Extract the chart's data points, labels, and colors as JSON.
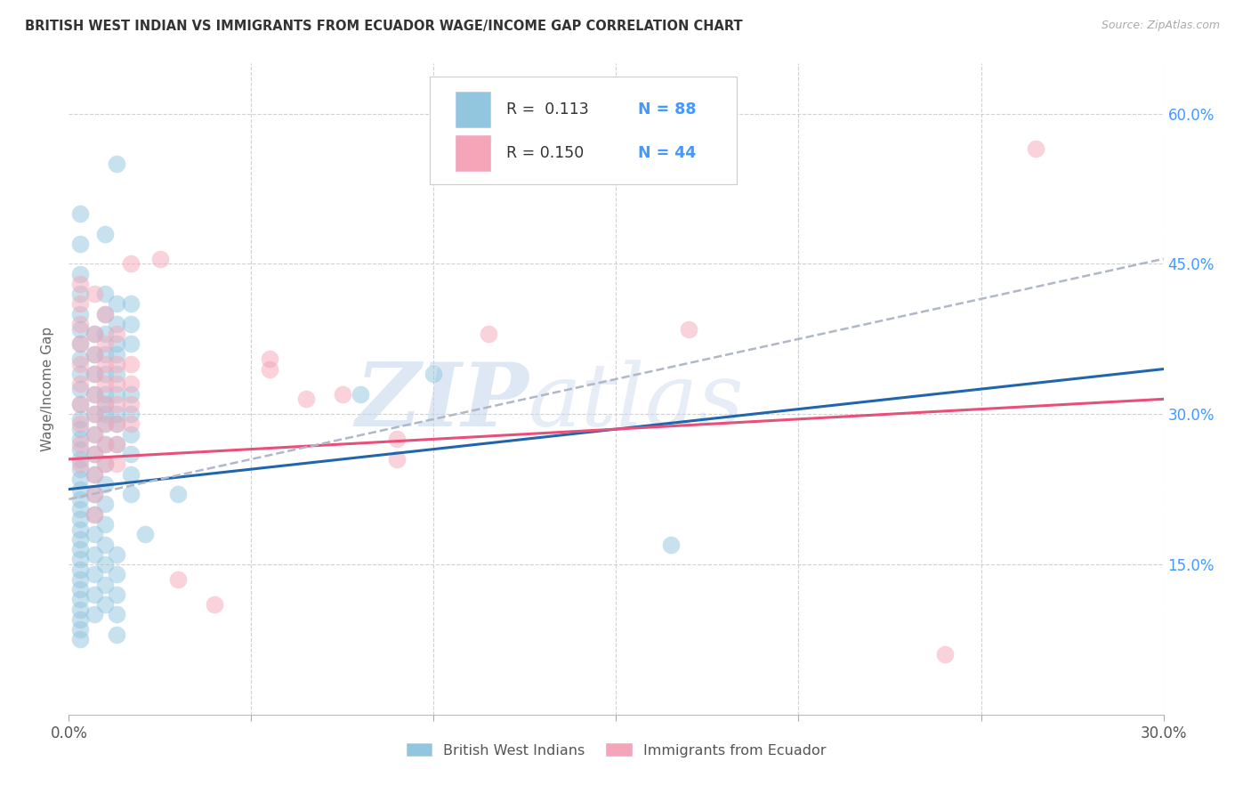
{
  "title": "BRITISH WEST INDIAN VS IMMIGRANTS FROM ECUADOR WAGE/INCOME GAP CORRELATION CHART",
  "source": "Source: ZipAtlas.com",
  "ylabel": "Wage/Income Gap",
  "x_min": 0.0,
  "x_max": 0.3,
  "y_min": 0.0,
  "y_max": 0.65,
  "color_blue": "#92c5de",
  "color_pink": "#f4a6b8",
  "color_blue_line": "#2166ac",
  "color_pink_line": "#e8507a",
  "color_dashed_line": "#b0b8c8",
  "watermark_text": "ZIP",
  "watermark_text2": "atlas",
  "blue_points": [
    [
      0.003,
      0.5
    ],
    [
      0.003,
      0.47
    ],
    [
      0.003,
      0.44
    ],
    [
      0.003,
      0.42
    ],
    [
      0.003,
      0.4
    ],
    [
      0.003,
      0.385
    ],
    [
      0.003,
      0.37
    ],
    [
      0.003,
      0.355
    ],
    [
      0.003,
      0.34
    ],
    [
      0.003,
      0.325
    ],
    [
      0.003,
      0.31
    ],
    [
      0.003,
      0.295
    ],
    [
      0.003,
      0.285
    ],
    [
      0.003,
      0.275
    ],
    [
      0.003,
      0.265
    ],
    [
      0.003,
      0.255
    ],
    [
      0.003,
      0.245
    ],
    [
      0.003,
      0.235
    ],
    [
      0.003,
      0.225
    ],
    [
      0.003,
      0.215
    ],
    [
      0.003,
      0.205
    ],
    [
      0.003,
      0.195
    ],
    [
      0.003,
      0.185
    ],
    [
      0.003,
      0.175
    ],
    [
      0.003,
      0.165
    ],
    [
      0.003,
      0.155
    ],
    [
      0.003,
      0.145
    ],
    [
      0.003,
      0.135
    ],
    [
      0.003,
      0.125
    ],
    [
      0.003,
      0.115
    ],
    [
      0.003,
      0.105
    ],
    [
      0.003,
      0.095
    ],
    [
      0.003,
      0.085
    ],
    [
      0.003,
      0.075
    ],
    [
      0.007,
      0.38
    ],
    [
      0.007,
      0.36
    ],
    [
      0.007,
      0.34
    ],
    [
      0.007,
      0.32
    ],
    [
      0.007,
      0.3
    ],
    [
      0.007,
      0.28
    ],
    [
      0.007,
      0.26
    ],
    [
      0.007,
      0.24
    ],
    [
      0.007,
      0.22
    ],
    [
      0.007,
      0.2
    ],
    [
      0.007,
      0.18
    ],
    [
      0.007,
      0.16
    ],
    [
      0.007,
      0.14
    ],
    [
      0.007,
      0.12
    ],
    [
      0.007,
      0.1
    ],
    [
      0.01,
      0.48
    ],
    [
      0.01,
      0.42
    ],
    [
      0.01,
      0.4
    ],
    [
      0.01,
      0.38
    ],
    [
      0.01,
      0.36
    ],
    [
      0.01,
      0.34
    ],
    [
      0.01,
      0.32
    ],
    [
      0.01,
      0.31
    ],
    [
      0.01,
      0.3
    ],
    [
      0.01,
      0.29
    ],
    [
      0.01,
      0.27
    ],
    [
      0.01,
      0.25
    ],
    [
      0.01,
      0.23
    ],
    [
      0.01,
      0.21
    ],
    [
      0.01,
      0.19
    ],
    [
      0.01,
      0.17
    ],
    [
      0.01,
      0.15
    ],
    [
      0.01,
      0.13
    ],
    [
      0.01,
      0.11
    ],
    [
      0.013,
      0.55
    ],
    [
      0.013,
      0.41
    ],
    [
      0.013,
      0.39
    ],
    [
      0.013,
      0.37
    ],
    [
      0.013,
      0.36
    ],
    [
      0.013,
      0.34
    ],
    [
      0.013,
      0.32
    ],
    [
      0.013,
      0.3
    ],
    [
      0.013,
      0.29
    ],
    [
      0.013,
      0.27
    ],
    [
      0.013,
      0.16
    ],
    [
      0.013,
      0.14
    ],
    [
      0.013,
      0.12
    ],
    [
      0.013,
      0.1
    ],
    [
      0.013,
      0.08
    ],
    [
      0.017,
      0.41
    ],
    [
      0.017,
      0.39
    ],
    [
      0.017,
      0.37
    ],
    [
      0.017,
      0.32
    ],
    [
      0.017,
      0.3
    ],
    [
      0.017,
      0.28
    ],
    [
      0.017,
      0.26
    ],
    [
      0.017,
      0.24
    ],
    [
      0.017,
      0.22
    ],
    [
      0.021,
      0.18
    ],
    [
      0.03,
      0.22
    ],
    [
      0.08,
      0.32
    ],
    [
      0.1,
      0.34
    ],
    [
      0.165,
      0.17
    ]
  ],
  "pink_points": [
    [
      0.003,
      0.43
    ],
    [
      0.003,
      0.41
    ],
    [
      0.003,
      0.39
    ],
    [
      0.003,
      0.37
    ],
    [
      0.003,
      0.35
    ],
    [
      0.003,
      0.33
    ],
    [
      0.003,
      0.31
    ],
    [
      0.003,
      0.29
    ],
    [
      0.003,
      0.27
    ],
    [
      0.003,
      0.25
    ],
    [
      0.007,
      0.42
    ],
    [
      0.007,
      0.38
    ],
    [
      0.007,
      0.36
    ],
    [
      0.007,
      0.34
    ],
    [
      0.007,
      0.32
    ],
    [
      0.007,
      0.3
    ],
    [
      0.007,
      0.28
    ],
    [
      0.007,
      0.26
    ],
    [
      0.007,
      0.24
    ],
    [
      0.007,
      0.22
    ],
    [
      0.007,
      0.2
    ],
    [
      0.01,
      0.4
    ],
    [
      0.01,
      0.37
    ],
    [
      0.01,
      0.35
    ],
    [
      0.01,
      0.33
    ],
    [
      0.01,
      0.31
    ],
    [
      0.01,
      0.29
    ],
    [
      0.01,
      0.27
    ],
    [
      0.01,
      0.25
    ],
    [
      0.013,
      0.38
    ],
    [
      0.013,
      0.35
    ],
    [
      0.013,
      0.33
    ],
    [
      0.013,
      0.31
    ],
    [
      0.013,
      0.29
    ],
    [
      0.013,
      0.27
    ],
    [
      0.013,
      0.25
    ],
    [
      0.017,
      0.45
    ],
    [
      0.017,
      0.35
    ],
    [
      0.017,
      0.33
    ],
    [
      0.017,
      0.31
    ],
    [
      0.017,
      0.29
    ],
    [
      0.025,
      0.455
    ],
    [
      0.03,
      0.135
    ],
    [
      0.04,
      0.11
    ],
    [
      0.055,
      0.355
    ],
    [
      0.055,
      0.345
    ],
    [
      0.065,
      0.315
    ],
    [
      0.075,
      0.32
    ],
    [
      0.09,
      0.275
    ],
    [
      0.09,
      0.255
    ],
    [
      0.115,
      0.38
    ],
    [
      0.17,
      0.385
    ],
    [
      0.24,
      0.06
    ],
    [
      0.265,
      0.565
    ]
  ],
  "blue_trendline": [
    [
      0.0,
      0.225
    ],
    [
      0.3,
      0.345
    ]
  ],
  "pink_trendline": [
    [
      0.0,
      0.255
    ],
    [
      0.3,
      0.315
    ]
  ],
  "dashed_trendline": [
    [
      0.0,
      0.215
    ],
    [
      0.3,
      0.455
    ]
  ]
}
